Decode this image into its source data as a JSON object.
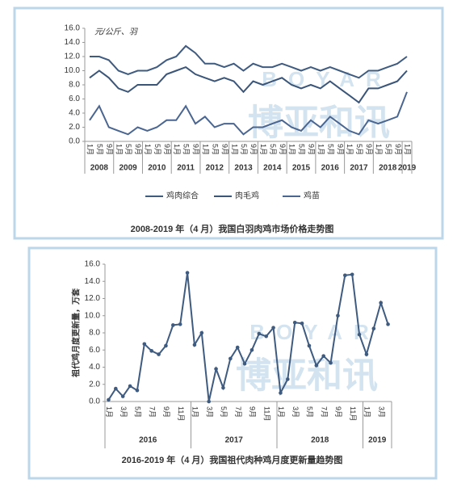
{
  "watermark": {
    "text": "博亚和讯",
    "latin": "BOYAR"
  },
  "chart_data": [
    {
      "type": "line",
      "title": "2008-2019 年（4 月）我国白羽肉鸡市场价格走势图",
      "y_label": "元/公斤、羽",
      "categories": [
        "1月",
        "5月",
        "9月",
        "1月",
        "5月",
        "9月",
        "1月",
        "5月",
        "9月",
        "1月",
        "5月",
        "9月",
        "1月",
        "5月",
        "9月",
        "1月",
        "5月",
        "9月",
        "1月",
        "5月",
        "9月",
        "1月",
        "5月",
        "9月",
        "1月",
        "5月",
        "9月",
        "1月",
        "5月",
        "9月",
        "1月",
        "5月",
        "9月",
        "1月"
      ],
      "year_groups": [
        {
          "label": "2008",
          "count": 3
        },
        {
          "label": "2009",
          "count": 3
        },
        {
          "label": "2010",
          "count": 3
        },
        {
          "label": "2011",
          "count": 3
        },
        {
          "label": "2012",
          "count": 3
        },
        {
          "label": "2013",
          "count": 3
        },
        {
          "label": "2014",
          "count": 3
        },
        {
          "label": "2015",
          "count": 3
        },
        {
          "label": "2016",
          "count": 3
        },
        {
          "label": "2017",
          "count": 3
        },
        {
          "label": "2018",
          "count": 3
        },
        {
          "label": "2019",
          "count": 1
        }
      ],
      "series": [
        {
          "name": "鸡肉综合",
          "color": "#3f5b80",
          "values": [
            12,
            12,
            11.5,
            10,
            9.5,
            10,
            10,
            10.5,
            11.5,
            12,
            13.5,
            12.5,
            11,
            11,
            10.5,
            11,
            10,
            11,
            10.5,
            10.5,
            11,
            10.5,
            10,
            10.5,
            10,
            10.5,
            10,
            9.5,
            9,
            10,
            10,
            10.5,
            11,
            12
          ]
        },
        {
          "name": "肉毛鸡",
          "color": "#3a5578",
          "values": [
            9,
            10,
            9,
            7.5,
            7,
            8,
            8,
            8,
            9.5,
            10,
            10.5,
            9.5,
            9,
            8.5,
            9,
            8.5,
            7,
            8.5,
            8,
            8.5,
            9,
            8,
            7.5,
            8,
            7.5,
            8.5,
            7.5,
            6.5,
            5.5,
            7.5,
            7.5,
            8,
            8.5,
            10
          ]
        },
        {
          "name": "鸡苗",
          "color": "#4a6690",
          "values": [
            3,
            5,
            2,
            1.5,
            1,
            2,
            1.5,
            2,
            3,
            3,
            5,
            2.5,
            3.5,
            2,
            2.5,
            2.5,
            1,
            2,
            2,
            2.5,
            3,
            2,
            1.5,
            3,
            2,
            3.5,
            2.5,
            1.5,
            1,
            3,
            2.5,
            3,
            3.5,
            7
          ]
        }
      ],
      "ylim": [
        0,
        16
      ],
      "yticks": [
        {
          "value": 0,
          "label": "0.0"
        },
        {
          "value": 2,
          "label": "2.0"
        },
        {
          "value": 4,
          "label": "4.0"
        },
        {
          "value": 6,
          "label": "6.0"
        },
        {
          "value": 8,
          "label": "8.0"
        },
        {
          "value": 10,
          "label": "10.0"
        },
        {
          "value": 12,
          "label": "12.0"
        },
        {
          "value": 14,
          "label": "14.0"
        },
        {
          "value": 16,
          "label": "16.0"
        }
      ],
      "legend": "bottom",
      "markers": false
    },
    {
      "type": "line",
      "title": "2016-2019 年（4 月）我国祖代肉种鸡月度更新量趋势图",
      "y_label": "祖代鸡月度更新量，万套",
      "categories": [
        "1月",
        null,
        "3月",
        null,
        "5月",
        null,
        "7月",
        null,
        "9月",
        null,
        "11月",
        null,
        "1月",
        null,
        "3月",
        null,
        "5月",
        null,
        "7月",
        null,
        "9月",
        null,
        "11月",
        null,
        "1月",
        null,
        "3月",
        null,
        "5月",
        null,
        "7月",
        null,
        "9月",
        null,
        "11月",
        null,
        "1月",
        null,
        "3月",
        null
      ],
      "year_groups": [
        {
          "label": "2016",
          "count": 12
        },
        {
          "label": "2017",
          "count": 12
        },
        {
          "label": "2018",
          "count": 12
        },
        {
          "label": "2019",
          "count": 4
        }
      ],
      "color": "#3f5b80",
      "values": [
        0.2,
        1.5,
        0.6,
        1.8,
        1.3,
        6.7,
        5.9,
        5.5,
        6.5,
        8.9,
        9.0,
        15.0,
        6.6,
        8.0,
        0,
        3.8,
        1.6,
        5.0,
        6.3,
        4.4,
        6.0,
        7.9,
        7.6,
        8.6,
        1.0,
        2.6,
        9.2,
        9.1,
        6.5,
        4.2,
        5.3,
        4.5,
        10.0,
        14.7,
        14.8,
        7.8,
        5.5,
        8.5,
        11.5,
        9.0
      ],
      "ylim": [
        0,
        16
      ],
      "yticks": [
        {
          "value": 0,
          "label": "0.0"
        },
        {
          "value": 2,
          "label": "2.0"
        },
        {
          "value": 4,
          "label": "4.0"
        },
        {
          "value": 6,
          "label": "6.0"
        },
        {
          "value": 8,
          "label": "8.0"
        },
        {
          "value": 10,
          "label": "10.0"
        },
        {
          "value": 12,
          "label": "12.0"
        },
        {
          "value": 14,
          "label": "14.0"
        },
        {
          "value": 16,
          "label": "16.0"
        }
      ],
      "markers": true
    }
  ]
}
